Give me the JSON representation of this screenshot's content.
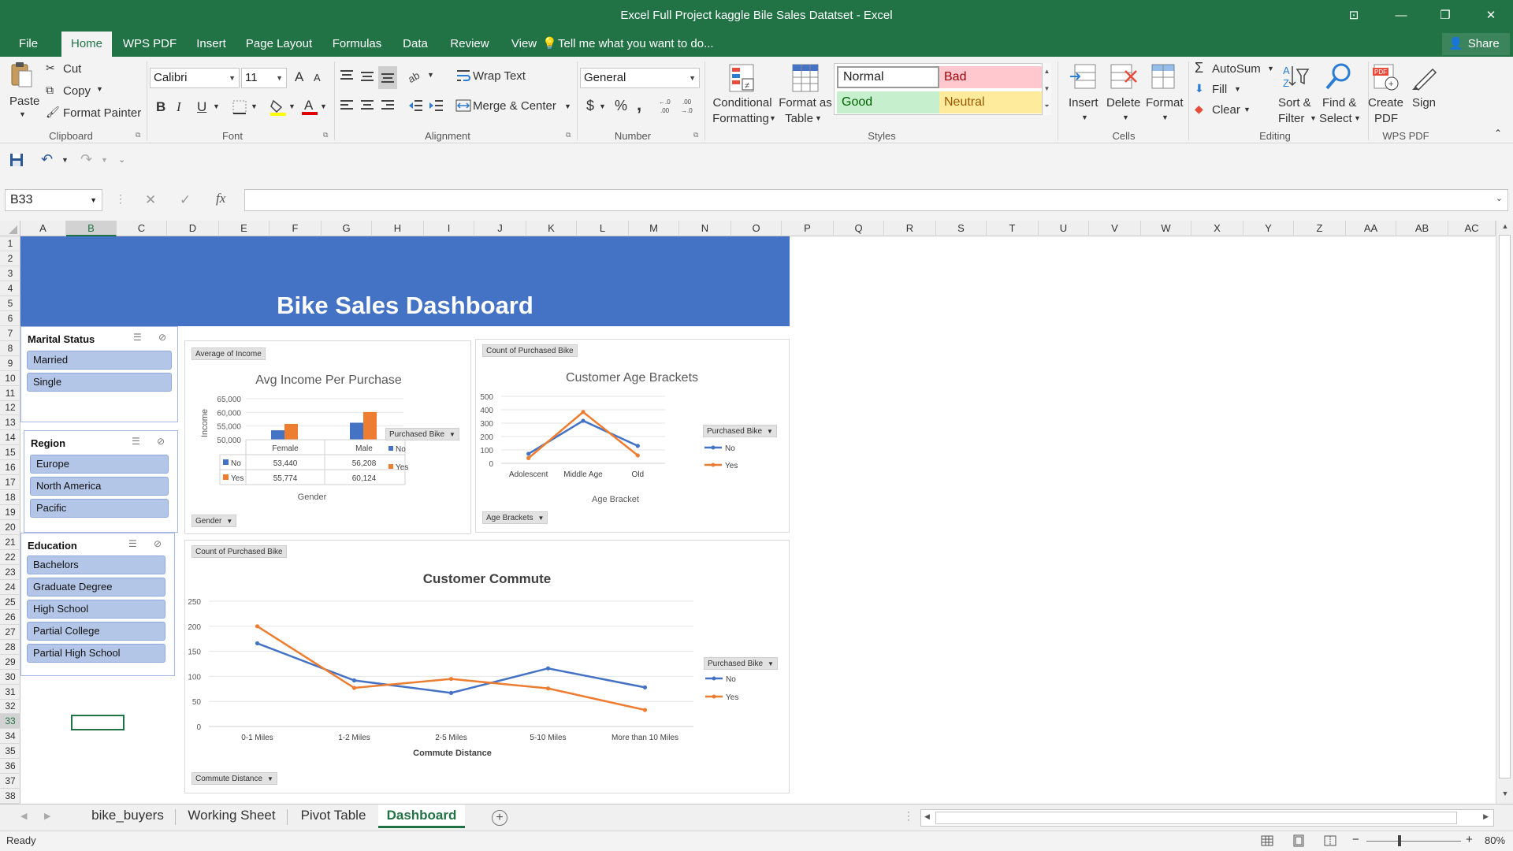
{
  "window": {
    "title": "Excel Full Project kaggle Bile Sales Datatset - Excel",
    "minimize": "—",
    "restore": "❐",
    "close": "✕",
    "box": "⊡"
  },
  "menu": {
    "file": "File",
    "tabs": [
      "Home",
      "WPS PDF",
      "Insert",
      "Page Layout",
      "Formulas",
      "Data",
      "Review",
      "View"
    ],
    "tell_me": "Tell me what you want to do...",
    "share": "Share"
  },
  "clipboard": {
    "paste": "Paste",
    "cut": "Cut",
    "copy": "Copy",
    "format_painter": "Format Painter",
    "group": "Clipboard"
  },
  "font": {
    "name": "Calibri",
    "size": "11",
    "group": "Font",
    "bold": "B",
    "italic": "I",
    "underline": "U",
    "grow": "A",
    "shrink": "A"
  },
  "alignment": {
    "wrap": "Wrap Text",
    "merge": "Merge & Center",
    "group": "Alignment"
  },
  "number": {
    "format": "General",
    "group": "Number",
    "currency": "$",
    "percent": "%",
    "comma": ","
  },
  "styles": {
    "conditional_line1": "Conditional",
    "conditional_line2": "Formatting",
    "format_table_line1": "Format as",
    "format_table_line2": "Table",
    "normal": "Normal",
    "bad": "Bad",
    "good": "Good",
    "neutral": "Neutral",
    "group": "Styles",
    "normal_color": "#ffffff",
    "bad_color": "#ffc7ce",
    "good_color": "#c6efce",
    "neutral_color": "#ffeb9c"
  },
  "cells": {
    "insert": "Insert",
    "delete": "Delete",
    "format": "Format",
    "group": "Cells"
  },
  "editing": {
    "autosum": "AutoSum",
    "fill": "Fill",
    "clear": "Clear",
    "sort_line1": "Sort &",
    "sort_line2": "Filter",
    "find_line1": "Find &",
    "find_line2": "Select",
    "group": "Editing"
  },
  "wps": {
    "create_line1": "Create",
    "create_line2": "PDF",
    "sign": "Sign",
    "group": "WPS PDF"
  },
  "formula_bar": {
    "name_box": "B33",
    "fx": "fx",
    "value": ""
  },
  "columns": [
    "A",
    "B",
    "C",
    "D",
    "E",
    "F",
    "G",
    "H",
    "I",
    "J",
    "K",
    "L",
    "M",
    "N",
    "O",
    "P",
    "Q",
    "R",
    "S",
    "T",
    "U",
    "V",
    "W",
    "X",
    "Y",
    "Z",
    "AA",
    "AB",
    "AC"
  ],
  "selected_column": "B",
  "rows": [
    "1",
    "2",
    "3",
    "4",
    "5",
    "6",
    "7",
    "8",
    "9",
    "10",
    "11",
    "12",
    "13",
    "14",
    "15",
    "16",
    "17",
    "18",
    "19",
    "20",
    "21",
    "22",
    "23",
    "24",
    "25",
    "26",
    "27",
    "28",
    "29",
    "30",
    "31",
    "32",
    "33",
    "34",
    "35",
    "36",
    "37",
    "38"
  ],
  "selected_row": "33",
  "dashboard": {
    "title": "Bike Sales Dashboard",
    "banner_color": "#4472c4"
  },
  "slicers": {
    "marital": {
      "title": "Marital Status",
      "items": [
        "Married",
        "Single"
      ]
    },
    "region": {
      "title": "Region",
      "items": [
        "Europe",
        "North America",
        "Pacific"
      ]
    },
    "education": {
      "title": "Education",
      "items": [
        "Bachelors",
        "Graduate Degree",
        "High School",
        "Partial College",
        "Partial High School"
      ]
    }
  },
  "chart_data": [
    {
      "type": "bar",
      "title": "Avg Income Per Purchase",
      "field_button": "Average of Income",
      "axis_button": "Gender",
      "legend_button": "Purchased Bike",
      "xlabel": "Gender",
      "ylabel": "Income",
      "categories": [
        "Female",
        "Male"
      ],
      "ylim": [
        50000,
        65000
      ],
      "yticks": [
        "65,000",
        "60,000",
        "55,000",
        "50,000"
      ],
      "series": [
        {
          "name": "No",
          "color": "#4472c4",
          "values": [
            53440,
            56208
          ],
          "labels": [
            "53,440",
            "56,208"
          ]
        },
        {
          "name": "Yes",
          "color": "#ed7d31",
          "values": [
            55774,
            60124
          ],
          "labels": [
            "55,774",
            "60,124"
          ]
        }
      ]
    },
    {
      "type": "line",
      "title": "Customer Age Brackets",
      "field_button": "Count of Purchased Bike",
      "axis_button": "Age Brackets",
      "legend_button": "Purchased Bike",
      "xlabel": "Age Bracket",
      "categories": [
        "Adolescent",
        "Middle Age",
        "Old"
      ],
      "ylim": [
        0,
        500
      ],
      "yticks": [
        "500",
        "400",
        "300",
        "200",
        "100",
        "0"
      ],
      "series": [
        {
          "name": "No",
          "color": "#4472c4",
          "values": [
            71,
            318,
            130
          ]
        },
        {
          "name": "Yes",
          "color": "#ed7d31",
          "values": [
            39,
            383,
            59
          ]
        }
      ]
    },
    {
      "type": "line",
      "title": "Customer Commute",
      "field_button": "Count of Purchased Bike",
      "axis_button": "Commute Distance",
      "legend_button": "Purchased Bike",
      "xlabel": "Commute Distance",
      "categories": [
        "0-1 Miles",
        "1-2 Miles",
        "2-5 Miles",
        "5-10 Miles",
        "More than 10 Miles"
      ],
      "ylim": [
        0,
        250
      ],
      "yticks": [
        "250",
        "200",
        "150",
        "100",
        "50",
        "0"
      ],
      "series": [
        {
          "name": "No",
          "color": "#4472c4",
          "values": [
            166,
            92,
            67,
            116,
            78
          ]
        },
        {
          "name": "Yes",
          "color": "#ed7d31",
          "values": [
            200,
            77,
            95,
            76,
            33
          ]
        }
      ]
    }
  ],
  "sheet_tabs": [
    "bike_buyers",
    "Working Sheet",
    "Pivot Table",
    "Dashboard"
  ],
  "active_sheet": "Dashboard",
  "status": {
    "ready": "Ready",
    "zoom": "80%",
    "minus": "−",
    "plus": "+"
  }
}
